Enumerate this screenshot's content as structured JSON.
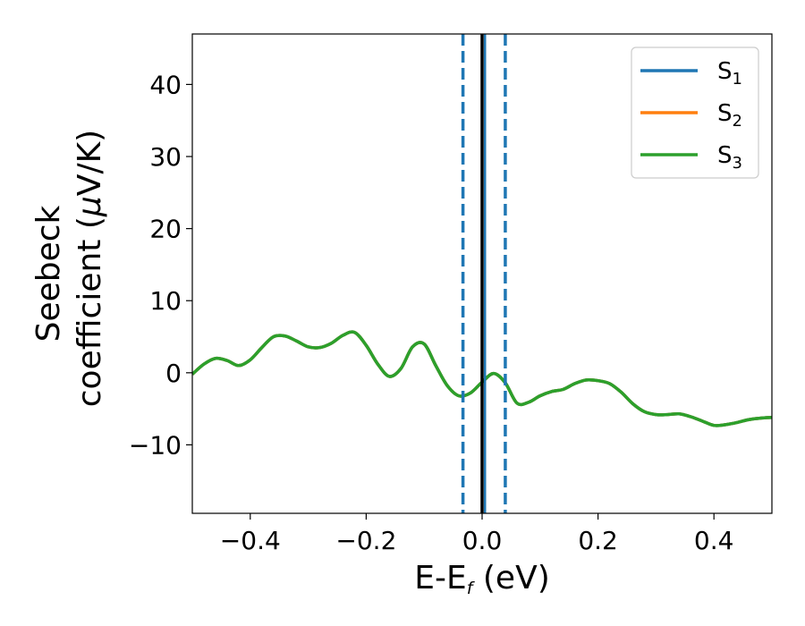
{
  "chart_data": {
    "type": "line",
    "title": "",
    "xlabel": "E-E",
    "xlabel_sub": "f",
    "xlabel_suffix": " (eV)",
    "ylabel_line1": "Seebeck",
    "ylabel_line2": "coefficient  (",
    "ylabel_mu": "μ",
    "ylabel_unit": "V/K)",
    "xlim": [
      -0.5,
      0.5
    ],
    "ylim": [
      -19.5,
      47
    ],
    "grid": false,
    "legend_position": "top-right",
    "x_ticks": [
      -0.4,
      -0.2,
      0.0,
      0.2,
      0.4
    ],
    "x_tick_labels": [
      "−0.4",
      "−0.2",
      "0.0",
      "0.2",
      "0.4"
    ],
    "y_ticks": [
      -10,
      0,
      10,
      20,
      30,
      40
    ],
    "y_tick_labels": [
      "−10",
      "0",
      "10",
      "20",
      "30",
      "40"
    ],
    "colors": {
      "S1": "#1f77b4",
      "S2": "#ff7f0e",
      "S3": "#2ca02c",
      "fermi": "#000000",
      "window": "#1f77b4"
    },
    "fermi_line_x": 0.0,
    "dashed_lines_x": [
      -0.033,
      0.04
    ],
    "solid_blue_line_x": 0.005,
    "series": [
      {
        "key": "S1",
        "name_base": "S",
        "name_sub": "1",
        "color": "#1f77b4",
        "x": [
          -0.5,
          -0.48,
          -0.46,
          -0.44,
          -0.42,
          -0.4,
          -0.38,
          -0.36,
          -0.34,
          -0.32,
          -0.3,
          -0.28,
          -0.26,
          -0.24,
          -0.22,
          -0.2,
          -0.18,
          -0.16,
          -0.14,
          -0.12,
          -0.1,
          -0.08,
          -0.06,
          -0.04,
          -0.02,
          0.0,
          0.02,
          0.04,
          0.06,
          0.08,
          0.1,
          0.12,
          0.14,
          0.16,
          0.18,
          0.2,
          0.22,
          0.24,
          0.26,
          0.28,
          0.3,
          0.32,
          0.34,
          0.36,
          0.38,
          0.4,
          0.42,
          0.44,
          0.46,
          0.48,
          0.5
        ],
        "y": [
          -0.2,
          1.2,
          2.0,
          1.7,
          1.0,
          1.8,
          3.5,
          5.0,
          5.1,
          4.4,
          3.6,
          3.5,
          4.1,
          5.2,
          5.6,
          3.8,
          1.2,
          -0.5,
          0.6,
          3.6,
          4.0,
          1.0,
          -1.8,
          -3.2,
          -2.8,
          -1.3,
          -0.1,
          -1.4,
          -4.2,
          -4.1,
          -3.2,
          -2.6,
          -2.3,
          -1.5,
          -1.0,
          -1.1,
          -1.5,
          -2.7,
          -4.3,
          -5.4,
          -5.8,
          -5.8,
          -5.7,
          -6.1,
          -6.7,
          -7.3,
          -7.2,
          -6.9,
          -6.5,
          -6.3,
          -6.2
        ]
      },
      {
        "key": "S2",
        "name_base": "S",
        "name_sub": "2",
        "color": "#ff7f0e",
        "x": [
          -0.5,
          -0.48,
          -0.46,
          -0.44,
          -0.42,
          -0.4,
          -0.38,
          -0.36,
          -0.34,
          -0.32,
          -0.3,
          -0.28,
          -0.26,
          -0.24,
          -0.22,
          -0.2,
          -0.18,
          -0.16,
          -0.14,
          -0.12,
          -0.1,
          -0.08,
          -0.06,
          -0.04,
          -0.02,
          0.0,
          0.02,
          0.04,
          0.06,
          0.08,
          0.1,
          0.12,
          0.14,
          0.16,
          0.18,
          0.2,
          0.22,
          0.24,
          0.26,
          0.28,
          0.3,
          0.32,
          0.34,
          0.36,
          0.38,
          0.4,
          0.42,
          0.44,
          0.46,
          0.48,
          0.5
        ],
        "y": [
          -0.2,
          1.2,
          2.0,
          1.7,
          1.0,
          1.8,
          3.5,
          5.0,
          5.1,
          4.4,
          3.6,
          3.5,
          4.1,
          5.2,
          5.6,
          3.8,
          1.2,
          -0.5,
          0.6,
          3.6,
          4.0,
          1.0,
          -1.8,
          -3.2,
          -2.8,
          -1.3,
          -0.1,
          -1.4,
          -4.2,
          -4.1,
          -3.2,
          -2.6,
          -2.3,
          -1.5,
          -1.0,
          -1.1,
          -1.5,
          -2.7,
          -4.3,
          -5.4,
          -5.8,
          -5.8,
          -5.7,
          -6.1,
          -6.7,
          -7.3,
          -7.2,
          -6.9,
          -6.5,
          -6.3,
          -6.2
        ]
      },
      {
        "key": "S3",
        "name_base": "S",
        "name_sub": "3",
        "color": "#2ca02c",
        "x": [
          -0.5,
          -0.48,
          -0.46,
          -0.44,
          -0.42,
          -0.4,
          -0.38,
          -0.36,
          -0.34,
          -0.32,
          -0.3,
          -0.28,
          -0.26,
          -0.24,
          -0.22,
          -0.2,
          -0.18,
          -0.16,
          -0.14,
          -0.12,
          -0.1,
          -0.08,
          -0.06,
          -0.04,
          -0.02,
          0.0,
          0.02,
          0.04,
          0.06,
          0.08,
          0.1,
          0.12,
          0.14,
          0.16,
          0.18,
          0.2,
          0.22,
          0.24,
          0.26,
          0.28,
          0.3,
          0.32,
          0.34,
          0.36,
          0.38,
          0.4,
          0.42,
          0.44,
          0.46,
          0.48,
          0.5
        ],
        "y": [
          -0.2,
          1.2,
          2.0,
          1.7,
          1.0,
          1.8,
          3.5,
          5.0,
          5.1,
          4.4,
          3.6,
          3.5,
          4.1,
          5.2,
          5.6,
          3.8,
          1.2,
          -0.5,
          0.6,
          3.6,
          4.0,
          1.0,
          -1.8,
          -3.2,
          -2.8,
          -1.3,
          -0.1,
          -1.4,
          -4.2,
          -4.1,
          -3.2,
          -2.6,
          -2.3,
          -1.5,
          -1.0,
          -1.1,
          -1.5,
          -2.7,
          -4.3,
          -5.4,
          -5.8,
          -5.8,
          -5.7,
          -6.1,
          -6.7,
          -7.3,
          -7.2,
          -6.9,
          -6.5,
          -6.3,
          -6.2
        ]
      }
    ]
  }
}
